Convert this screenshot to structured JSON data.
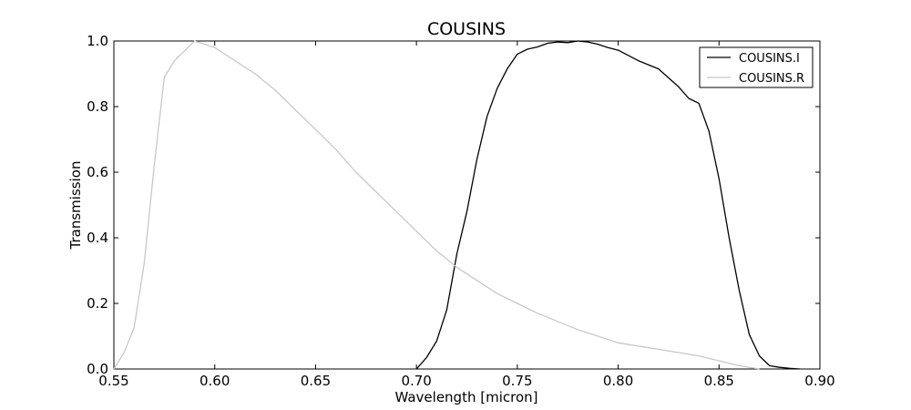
{
  "chart_data": {
    "type": "line",
    "title": "COUSINS",
    "xlabel": "Wavelength [micron]",
    "ylabel": "Transmission",
    "xlim": [
      0.55,
      0.9
    ],
    "ylim": [
      0.0,
      1.0
    ],
    "xticks": [
      0.55,
      0.6,
      0.65,
      0.7,
      0.75,
      0.8,
      0.85,
      0.9
    ],
    "xtick_labels": [
      "0.55",
      "0.60",
      "0.65",
      "0.70",
      "0.75",
      "0.80",
      "0.85",
      "0.90"
    ],
    "yticks": [
      0.0,
      0.2,
      0.4,
      0.6,
      0.8,
      1.0
    ],
    "ytick_labels": [
      "0.0",
      "0.2",
      "0.4",
      "0.6",
      "0.8",
      "1.0"
    ],
    "grid": false,
    "legend_position": "top-right",
    "series": [
      {
        "name": "COUSINS.I",
        "color": "#000000",
        "x": [
          0.7,
          0.705,
          0.71,
          0.715,
          0.72,
          0.725,
          0.73,
          0.735,
          0.74,
          0.745,
          0.75,
          0.755,
          0.76,
          0.765,
          0.77,
          0.775,
          0.78,
          0.785,
          0.79,
          0.795,
          0.8,
          0.81,
          0.82,
          0.83,
          0.835,
          0.84,
          0.845,
          0.85,
          0.855,
          0.86,
          0.865,
          0.87,
          0.875,
          0.88,
          0.885,
          0.89
        ],
        "y": [
          0.0,
          0.035,
          0.085,
          0.18,
          0.35,
          0.48,
          0.64,
          0.77,
          0.855,
          0.915,
          0.96,
          0.975,
          0.982,
          0.993,
          0.997,
          0.995,
          1.0,
          0.997,
          0.99,
          0.98,
          0.972,
          0.94,
          0.915,
          0.86,
          0.825,
          0.81,
          0.725,
          0.58,
          0.4,
          0.24,
          0.105,
          0.04,
          0.01,
          0.005,
          0.002,
          0.0
        ]
      },
      {
        "name": "COUSINS.R",
        "color": "#c8c8c8",
        "x": [
          0.55,
          0.555,
          0.56,
          0.565,
          0.57,
          0.575,
          0.58,
          0.585,
          0.59,
          0.6,
          0.61,
          0.62,
          0.63,
          0.64,
          0.65,
          0.66,
          0.67,
          0.68,
          0.69,
          0.7,
          0.71,
          0.72,
          0.73,
          0.74,
          0.75,
          0.76,
          0.77,
          0.78,
          0.79,
          0.8,
          0.81,
          0.82,
          0.83,
          0.84,
          0.85,
          0.86,
          0.87
        ],
        "y": [
          0.0,
          0.05,
          0.125,
          0.32,
          0.62,
          0.89,
          0.94,
          0.97,
          1.0,
          0.98,
          0.94,
          0.9,
          0.85,
          0.79,
          0.73,
          0.67,
          0.6,
          0.54,
          0.48,
          0.42,
          0.36,
          0.31,
          0.27,
          0.23,
          0.2,
          0.17,
          0.145,
          0.12,
          0.1,
          0.08,
          0.07,
          0.06,
          0.05,
          0.04,
          0.025,
          0.01,
          0.0
        ]
      }
    ]
  }
}
